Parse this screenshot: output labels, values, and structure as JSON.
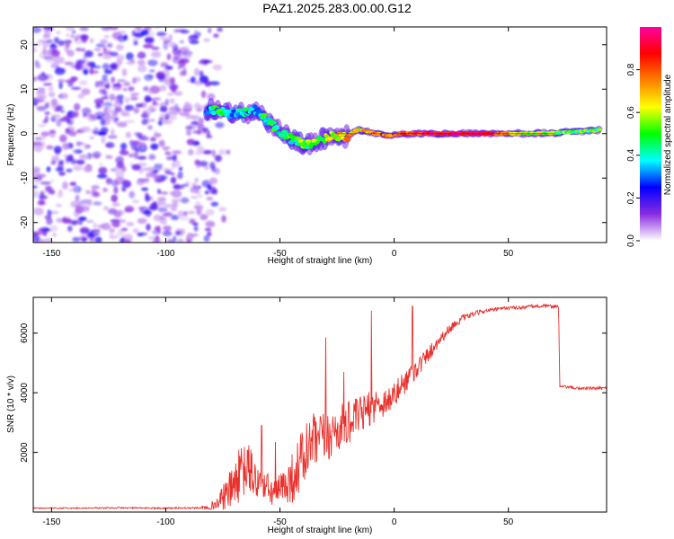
{
  "title": "PAZ1.2025.283.00.00.G12",
  "colors": {
    "line": "#e8312c",
    "frame": "#000000",
    "strongest": "#ff2020",
    "background": "#ffffff"
  },
  "chart_data": [
    {
      "type": "heatmap",
      "xlabel": "Height of straight line (km)",
      "ylabel": "Frequency (Hz)",
      "xlim": [
        -158,
        93
      ],
      "ylim": [
        -24.5,
        24
      ],
      "xticks": [
        -150,
        -100,
        -50,
        0,
        50
      ],
      "yticks": [
        -20,
        -10,
        0,
        10,
        20
      ],
      "colorbar": {
        "label": "Normalized spectral amplitude",
        "range": [
          0.0,
          1.0
        ],
        "ticks": [
          0.0,
          0.2,
          0.4,
          0.6,
          0.8
        ],
        "colormap": [
          "#ffffff",
          "#8a2be2",
          "#0000ff",
          "#00ffff",
          "#00ff00",
          "#ffff00",
          "#ff8000",
          "#ff0000",
          "#ff00a0"
        ]
      },
      "noise_region": {
        "x_range": [
          -158,
          -78
        ],
        "freq_range": [
          -24.5,
          24
        ],
        "amplitude": [
          0.05,
          0.25
        ]
      },
      "ridge": [
        {
          "x": -82,
          "freq": 5.5,
          "amp": 0.35
        },
        {
          "x": -76,
          "freq": 5.0,
          "amp": 0.45
        },
        {
          "x": -72,
          "freq": 4.5,
          "amp": 0.4
        },
        {
          "x": -67,
          "freq": 4.5,
          "amp": 0.38
        },
        {
          "x": -61,
          "freq": 5.5,
          "amp": 0.35
        },
        {
          "x": -56,
          "freq": 3.0,
          "amp": 0.42
        },
        {
          "x": -50,
          "freq": 0.5,
          "amp": 0.45
        },
        {
          "x": -44,
          "freq": -1.5,
          "amp": 0.48
        },
        {
          "x": -38,
          "freq": -2.5,
          "amp": 0.5
        },
        {
          "x": -33,
          "freq": -1.5,
          "amp": 0.55
        },
        {
          "x": -27,
          "freq": -0.5,
          "amp": 0.62
        },
        {
          "x": -21,
          "freq": -0.8,
          "amp": 0.7
        },
        {
          "x": -16,
          "freq": 1.0,
          "amp": 0.66
        },
        {
          "x": -10,
          "freq": 0.3,
          "amp": 0.72
        },
        {
          "x": -3,
          "freq": -0.5,
          "amp": 0.78
        },
        {
          "x": 5,
          "freq": 0.0,
          "amp": 0.82
        },
        {
          "x": 15,
          "freq": 0.0,
          "amp": 0.9
        },
        {
          "x": 28,
          "freq": 0.0,
          "amp": 0.95
        },
        {
          "x": 40,
          "freq": 0.0,
          "amp": 0.92
        },
        {
          "x": 55,
          "freq": 0.0,
          "amp": 0.6
        },
        {
          "x": 70,
          "freq": 0.2,
          "amp": 0.55
        },
        {
          "x": 82,
          "freq": 0.5,
          "amp": 0.5
        },
        {
          "x": 90,
          "freq": 0.8,
          "amp": 0.48
        }
      ]
    },
    {
      "type": "line",
      "xlabel": "Height of straight line (km)",
      "ylabel": "SNR (10 * v/v)",
      "xlim": [
        -158,
        93
      ],
      "ylim": [
        0,
        7200
      ],
      "xticks": [
        -150,
        -100,
        -50,
        0,
        50
      ],
      "yticks": [
        2000,
        4000,
        6000
      ],
      "series": [
        {
          "name": "SNR",
          "x": [
            -158,
            -140,
            -120,
            -100,
            -85,
            -78,
            -72,
            -68,
            -64,
            -60,
            -56,
            -52,
            -48,
            -44,
            -40,
            -36,
            -32,
            -28,
            -24,
            -20,
            -16,
            -12,
            -8,
            -4,
            0,
            4,
            8,
            12,
            16,
            20,
            25,
            30,
            35,
            40,
            45,
            50,
            55,
            60,
            65,
            70,
            72,
            72.5,
            75,
            80,
            85,
            93
          ],
          "y": [
            130,
            130,
            140,
            130,
            140,
            250,
            700,
            1200,
            1500,
            1000,
            800,
            600,
            900,
            1200,
            1800,
            2300,
            2400,
            2600,
            2800,
            3000,
            3200,
            3400,
            3600,
            3700,
            3900,
            4300,
            4700,
            5000,
            5400,
            5800,
            6200,
            6500,
            6650,
            6750,
            6800,
            6850,
            6850,
            6900,
            6900,
            6900,
            6900,
            4200,
            4200,
            4150,
            4150,
            4150
          ],
          "noise": [
            20,
            20,
            25,
            25,
            30,
            180,
            650,
            900,
            900,
            700,
            550,
            450,
            650,
            900,
            1100,
            1000,
            950,
            850,
            800,
            700,
            650,
            600,
            550,
            500,
            450,
            420,
            380,
            330,
            260,
            200,
            150,
            110,
            80,
            70,
            60,
            60,
            55,
            55,
            55,
            55,
            55,
            50,
            50,
            50,
            50,
            50
          ],
          "spikes": [
            {
              "x": -58,
              "y": 2900
            },
            {
              "x": -52,
              "y": 2350
            },
            {
              "x": -30,
              "y": 5850
            },
            {
              "x": -22,
              "y": 4700
            },
            {
              "x": -10,
              "y": 6750
            },
            {
              "x": 8,
              "y": 6900
            }
          ]
        }
      ]
    }
  ]
}
